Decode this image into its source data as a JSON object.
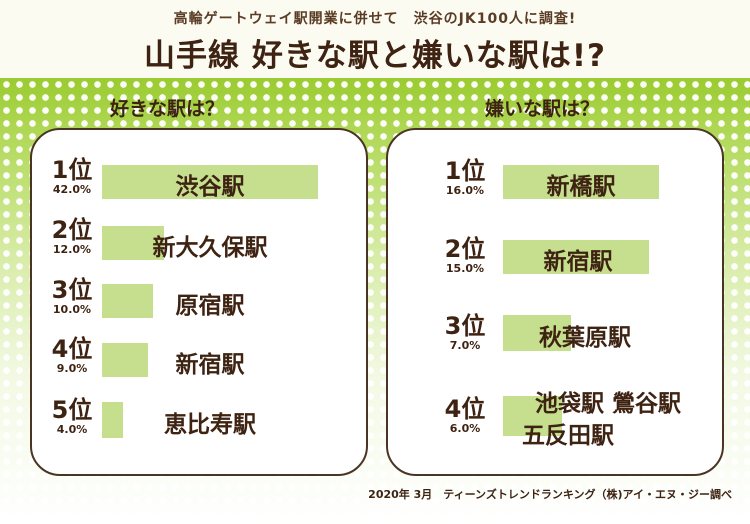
{
  "header": {
    "subtitle": "高輪ゲートウェイ駅開業に併せて　渋谷のJK100人に調査!",
    "title": "山手線 好きな駅と嫌いな駅は!?"
  },
  "left": {
    "heading": "好きな駅は？",
    "items": [
      {
        "rank": "1位",
        "pct": "42.0%",
        "station": "渋谷駅"
      },
      {
        "rank": "2位",
        "pct": "12.0%",
        "station": "新大久保駅"
      },
      {
        "rank": "3位",
        "pct": "10.0%",
        "station": "原宿駅"
      },
      {
        "rank": "4位",
        "pct": "9.0%",
        "station": "新宿駅"
      },
      {
        "rank": "5位",
        "pct": "4.0%",
        "station": "恵比寿駅"
      }
    ]
  },
  "right": {
    "heading": "嫌いな駅は？",
    "items": [
      {
        "rank": "1位",
        "pct": "16.0%",
        "station": "新橋駅"
      },
      {
        "rank": "2位",
        "pct": "15.0%",
        "station": "新宿駅"
      },
      {
        "rank": "3位",
        "pct": "7.0%",
        "station": "秋葉原駅"
      },
      {
        "rank": "4位",
        "pct": "6.0%",
        "station": "池袋駅 鶯谷駅",
        "station2": "五反田駅"
      }
    ]
  },
  "footer": "2020年 3月　ティーンズトレンドランキング（株)アイ・エヌ・ジー調べ",
  "colors": {
    "bar": "#c5df8e",
    "text": "#3e2312",
    "background_green": "#9acb30"
  },
  "chart_data": [
    {
      "type": "bar",
      "title": "好きな駅は？",
      "categories": [
        "渋谷駅",
        "新大久保駅",
        "原宿駅",
        "新宿駅",
        "恵比寿駅"
      ],
      "values": [
        42.0,
        12.0,
        10.0,
        9.0,
        4.0
      ]
    },
    {
      "type": "bar",
      "title": "嫌いな駅は？",
      "categories": [
        "新橋駅",
        "新宿駅",
        "秋葉原駅",
        "池袋駅 鶯谷駅 五反田駅"
      ],
      "values": [
        16.0,
        15.0,
        7.0,
        6.0
      ]
    }
  ]
}
